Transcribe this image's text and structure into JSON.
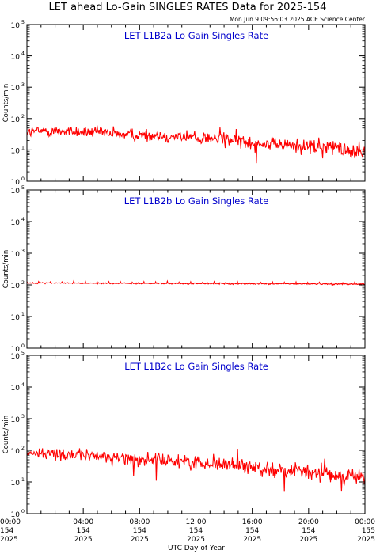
{
  "title": "LET ahead Lo-Gain SINGLES RATES Data for 2025-154",
  "timestamp": "Mon Jun  9 09:56:03 2025 ACE Science Center",
  "xlabel": "UTC Day of Year",
  "ylabel": "Counts/min",
  "colors": {
    "trace": "#ff0000",
    "panel_title": "#0000cc",
    "axes": "#000000"
  },
  "x_ticks": [
    {
      "time": "00:00",
      "doy": "154",
      "year": "2025"
    },
    {
      "time": "04:00",
      "doy": "154",
      "year": "2025"
    },
    {
      "time": "08:00",
      "doy": "154",
      "year": "2025"
    },
    {
      "time": "12:00",
      "doy": "154",
      "year": "2025"
    },
    {
      "time": "16:00",
      "doy": "154",
      "year": "2025"
    },
    {
      "time": "20:00",
      "doy": "154",
      "year": "2025"
    },
    {
      "time": "00:00",
      "doy": "155",
      "year": "2025"
    }
  ],
  "y_ticks": [
    {
      "base": "10",
      "exp": "0"
    },
    {
      "base": "10",
      "exp": "1"
    },
    {
      "base": "10",
      "exp": "2"
    },
    {
      "base": "10",
      "exp": "3"
    },
    {
      "base": "10",
      "exp": "4"
    },
    {
      "base": "10",
      "exp": "5"
    }
  ],
  "chart_data": [
    {
      "type": "line",
      "title": "LET L1B2a Lo Gain Singles Rate",
      "xlabel": "UTC Day of Year",
      "ylabel": "Counts/min",
      "xlim": [
        0,
        24
      ],
      "ylim": [
        1,
        100000
      ],
      "yscale": "log",
      "grid": false,
      "series": [
        {
          "x": [
            0,
            2,
            4,
            6,
            8,
            10,
            12,
            14,
            16,
            18,
            20,
            22,
            24
          ],
          "values": [
            38,
            40,
            38,
            33,
            30,
            28,
            25,
            22,
            18,
            15,
            13,
            11,
            9
          ]
        }
      ]
    },
    {
      "type": "line",
      "title": "LET L1B2b Lo Gain Singles Rate",
      "xlabel": "UTC Day of Year",
      "ylabel": "Counts/min",
      "xlim": [
        0,
        24
      ],
      "ylim": [
        1,
        100000
      ],
      "yscale": "log",
      "grid": false,
      "series": [
        {
          "x": [
            0,
            2,
            4,
            6,
            8,
            10,
            12,
            14,
            16,
            18,
            20,
            22,
            24
          ],
          "values": [
            115,
            115,
            114,
            113,
            112,
            111,
            110,
            110,
            109,
            108,
            108,
            107,
            106
          ]
        }
      ]
    },
    {
      "type": "line",
      "title": "LET L1B2c Lo Gain Singles Rate",
      "xlabel": "UTC Day of Year",
      "ylabel": "Counts/min",
      "xlim": [
        0,
        24
      ],
      "ylim": [
        1,
        100000
      ],
      "yscale": "log",
      "grid": false,
      "series": [
        {
          "x": [
            0,
            2,
            4,
            6,
            8,
            10,
            12,
            14,
            16,
            18,
            20,
            22,
            24
          ],
          "values": [
            80,
            78,
            70,
            60,
            52,
            47,
            42,
            37,
            30,
            24,
            20,
            17,
            14
          ]
        }
      ]
    }
  ]
}
